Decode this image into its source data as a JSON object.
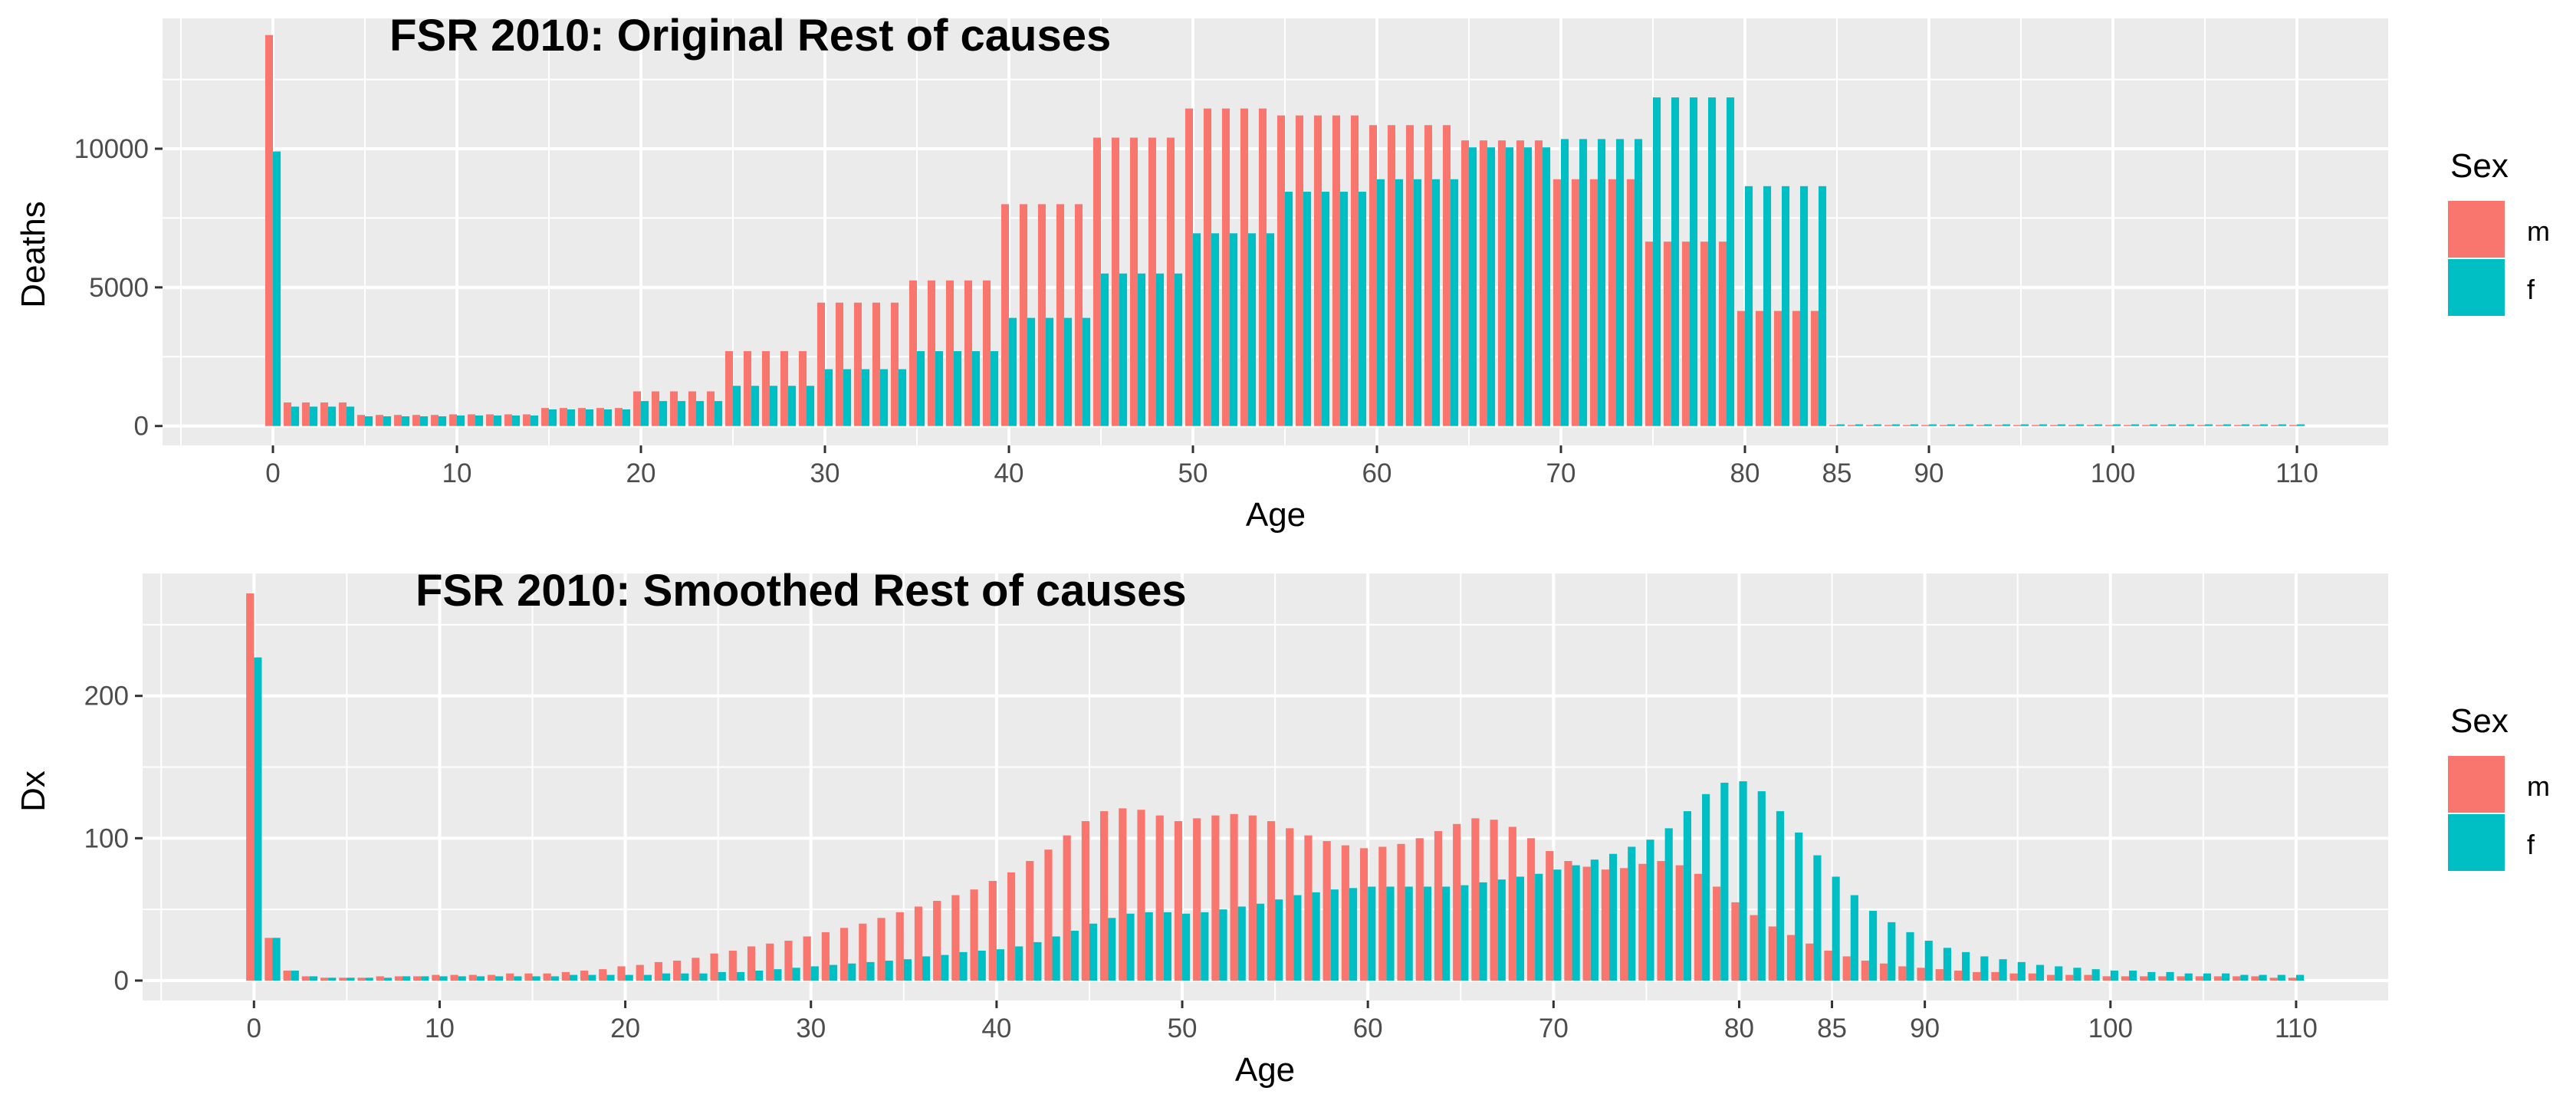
{
  "chart_data": [
    {
      "type": "bar",
      "title": "FSR 2010: Original Rest of causes",
      "xlabel": "Age",
      "ylabel": "Deaths",
      "xlim": [
        -6,
        115
      ],
      "ylim": [
        -700,
        14700
      ],
      "x_ticks": [
        0,
        10,
        20,
        30,
        40,
        50,
        60,
        70,
        80,
        85,
        90,
        100,
        110
      ],
      "y_ticks": [
        0,
        5000,
        10000
      ],
      "y_tick_labels": [
        "0",
        "5000",
        "10000"
      ],
      "grid": true,
      "legend": {
        "title": "Sex",
        "position": "right",
        "entries": [
          "m",
          "f"
        ]
      },
      "series_note": "",
      "series": [
        {
          "key": "m",
          "color": "#F8766D",
          "groups": [
            {
              "from": 0,
              "to": 0,
              "value": 14100
            },
            {
              "from": 1,
              "to": 4,
              "value": 850
            },
            {
              "from": 5,
              "to": 9,
              "value": 400
            },
            {
              "from": 10,
              "to": 14,
              "value": 420
            },
            {
              "from": 15,
              "to": 19,
              "value": 650
            },
            {
              "from": 20,
              "to": 24,
              "value": 1250
            },
            {
              "from": 25,
              "to": 29,
              "value": 2700
            },
            {
              "from": 30,
              "to": 34,
              "value": 4450
            },
            {
              "from": 35,
              "to": 39,
              "value": 5250
            },
            {
              "from": 40,
              "to": 44,
              "value": 8000
            },
            {
              "from": 45,
              "to": 49,
              "value": 10400
            },
            {
              "from": 50,
              "to": 54,
              "value": 11450
            },
            {
              "from": 55,
              "to": 59,
              "value": 11200
            },
            {
              "from": 60,
              "to": 64,
              "value": 10850
            },
            {
              "from": 65,
              "to": 69,
              "value": 10300
            },
            {
              "from": 70,
              "to": 74,
              "value": 8900
            },
            {
              "from": 75,
              "to": 79,
              "value": 6650
            },
            {
              "from": 80,
              "to": 84,
              "value": 4150
            },
            {
              "from": 85,
              "to": 110,
              "value": 40
            }
          ]
        },
        {
          "key": "f",
          "color": "#00BFC4",
          "groups": [
            {
              "from": 0,
              "to": 0,
              "value": 9900
            },
            {
              "from": 1,
              "to": 4,
              "value": 700
            },
            {
              "from": 5,
              "to": 9,
              "value": 350
            },
            {
              "from": 10,
              "to": 14,
              "value": 380
            },
            {
              "from": 15,
              "to": 19,
              "value": 600
            },
            {
              "from": 20,
              "to": 24,
              "value": 900
            },
            {
              "from": 25,
              "to": 29,
              "value": 1450
            },
            {
              "from": 30,
              "to": 34,
              "value": 2050
            },
            {
              "from": 35,
              "to": 39,
              "value": 2700
            },
            {
              "from": 40,
              "to": 44,
              "value": 3900
            },
            {
              "from": 45,
              "to": 49,
              "value": 5500
            },
            {
              "from": 50,
              "to": 54,
              "value": 6950
            },
            {
              "from": 55,
              "to": 59,
              "value": 8450
            },
            {
              "from": 60,
              "to": 64,
              "value": 8900
            },
            {
              "from": 65,
              "to": 69,
              "value": 10050
            },
            {
              "from": 70,
              "to": 74,
              "value": 10350
            },
            {
              "from": 75,
              "to": 79,
              "value": 11850
            },
            {
              "from": 80,
              "to": 84,
              "value": 8650
            },
            {
              "from": 85,
              "to": 110,
              "value": 60
            }
          ]
        }
      ]
    },
    {
      "type": "bar",
      "title": "FSR 2010: Smoothed Rest of causes",
      "xlabel": "Age",
      "ylabel": "Dx",
      "xlim": [
        -6,
        115
      ],
      "ylim": [
        -14,
        286
      ],
      "x_ticks": [
        0,
        10,
        20,
        30,
        40,
        50,
        60,
        70,
        80,
        85,
        90,
        100,
        110
      ],
      "y_ticks": [
        0,
        100,
        200
      ],
      "y_tick_labels": [
        "0",
        "100",
        "200"
      ],
      "grid": true,
      "legend": {
        "title": "Sex",
        "position": "right",
        "entries": [
          "m",
          "f"
        ]
      },
      "series": [
        {
          "key": "m",
          "color": "#F8766D",
          "x": [
            0,
            1,
            2,
            3,
            4,
            5,
            6,
            7,
            8,
            9,
            10,
            11,
            12,
            13,
            14,
            15,
            16,
            17,
            18,
            19,
            20,
            21,
            22,
            23,
            24,
            25,
            26,
            27,
            28,
            29,
            30,
            31,
            32,
            33,
            34,
            35,
            36,
            37,
            38,
            39,
            40,
            41,
            42,
            43,
            44,
            45,
            46,
            47,
            48,
            49,
            50,
            51,
            52,
            53,
            54,
            55,
            56,
            57,
            58,
            59,
            60,
            61,
            62,
            63,
            64,
            65,
            66,
            67,
            68,
            69,
            70,
            71,
            72,
            73,
            74,
            75,
            76,
            77,
            78,
            79,
            80,
            81,
            82,
            83,
            84,
            85,
            86,
            87,
            88,
            89,
            90,
            91,
            92,
            93,
            94,
            95,
            96,
            97,
            98,
            99,
            100,
            101,
            102,
            103,
            104,
            105,
            106,
            107,
            108,
            109,
            110
          ],
          "values": [
            272,
            30,
            7,
            3,
            2,
            2,
            2,
            3,
            3,
            3,
            4,
            4,
            4,
            4,
            5,
            5,
            5,
            6,
            7,
            8,
            10,
            11,
            13,
            14,
            16,
            19,
            21,
            24,
            26,
            28,
            31,
            34,
            37,
            40,
            44,
            48,
            52,
            56,
            60,
            64,
            70,
            76,
            84,
            92,
            102,
            112,
            119,
            121,
            120,
            116,
            112,
            114,
            116,
            117,
            116,
            112,
            107,
            102,
            98,
            95,
            93,
            94,
            96,
            100,
            105,
            110,
            114,
            113,
            108,
            100,
            91,
            84,
            80,
            78,
            79,
            82,
            84,
            81,
            75,
            66,
            55,
            46,
            38,
            32,
            26,
            21,
            17,
            14,
            12,
            10,
            9,
            8,
            7,
            6,
            6,
            5,
            5,
            4,
            4,
            4,
            3,
            3,
            3,
            3,
            3,
            3,
            3,
            3,
            3,
            2,
            2
          ]
        },
        {
          "key": "f",
          "color": "#00BFC4",
          "x": [
            0,
            1,
            2,
            3,
            4,
            5,
            6,
            7,
            8,
            9,
            10,
            11,
            12,
            13,
            14,
            15,
            16,
            17,
            18,
            19,
            20,
            21,
            22,
            23,
            24,
            25,
            26,
            27,
            28,
            29,
            30,
            31,
            32,
            33,
            34,
            35,
            36,
            37,
            38,
            39,
            40,
            41,
            42,
            43,
            44,
            45,
            46,
            47,
            48,
            49,
            50,
            51,
            52,
            53,
            54,
            55,
            56,
            57,
            58,
            59,
            60,
            61,
            62,
            63,
            64,
            65,
            66,
            67,
            68,
            69,
            70,
            71,
            72,
            73,
            74,
            75,
            76,
            77,
            78,
            79,
            80,
            81,
            82,
            83,
            84,
            85,
            86,
            87,
            88,
            89,
            90,
            91,
            92,
            93,
            94,
            95,
            96,
            97,
            98,
            99,
            100,
            101,
            102,
            103,
            104,
            105,
            106,
            107,
            108,
            109,
            110
          ],
          "values": [
            227,
            30,
            7,
            3,
            2,
            2,
            2,
            2,
            3,
            3,
            3,
            3,
            3,
            3,
            3,
            3,
            3,
            4,
            4,
            4,
            4,
            4,
            5,
            5,
            5,
            6,
            6,
            7,
            8,
            9,
            10,
            11,
            12,
            13,
            14,
            15,
            17,
            18,
            20,
            21,
            22,
            24,
            27,
            31,
            35,
            40,
            44,
            47,
            48,
            48,
            47,
            48,
            50,
            52,
            54,
            57,
            60,
            62,
            64,
            65,
            66,
            66,
            66,
            66,
            66,
            67,
            69,
            71,
            73,
            75,
            78,
            81,
            85,
            89,
            94,
            99,
            107,
            119,
            131,
            139,
            140,
            133,
            119,
            104,
            88,
            73,
            60,
            49,
            41,
            34,
            28,
            23,
            20,
            17,
            15,
            13,
            11,
            10,
            9,
            8,
            7,
            7,
            6,
            6,
            5,
            5,
            5,
            4,
            4,
            4,
            4
          ]
        }
      ]
    }
  ]
}
